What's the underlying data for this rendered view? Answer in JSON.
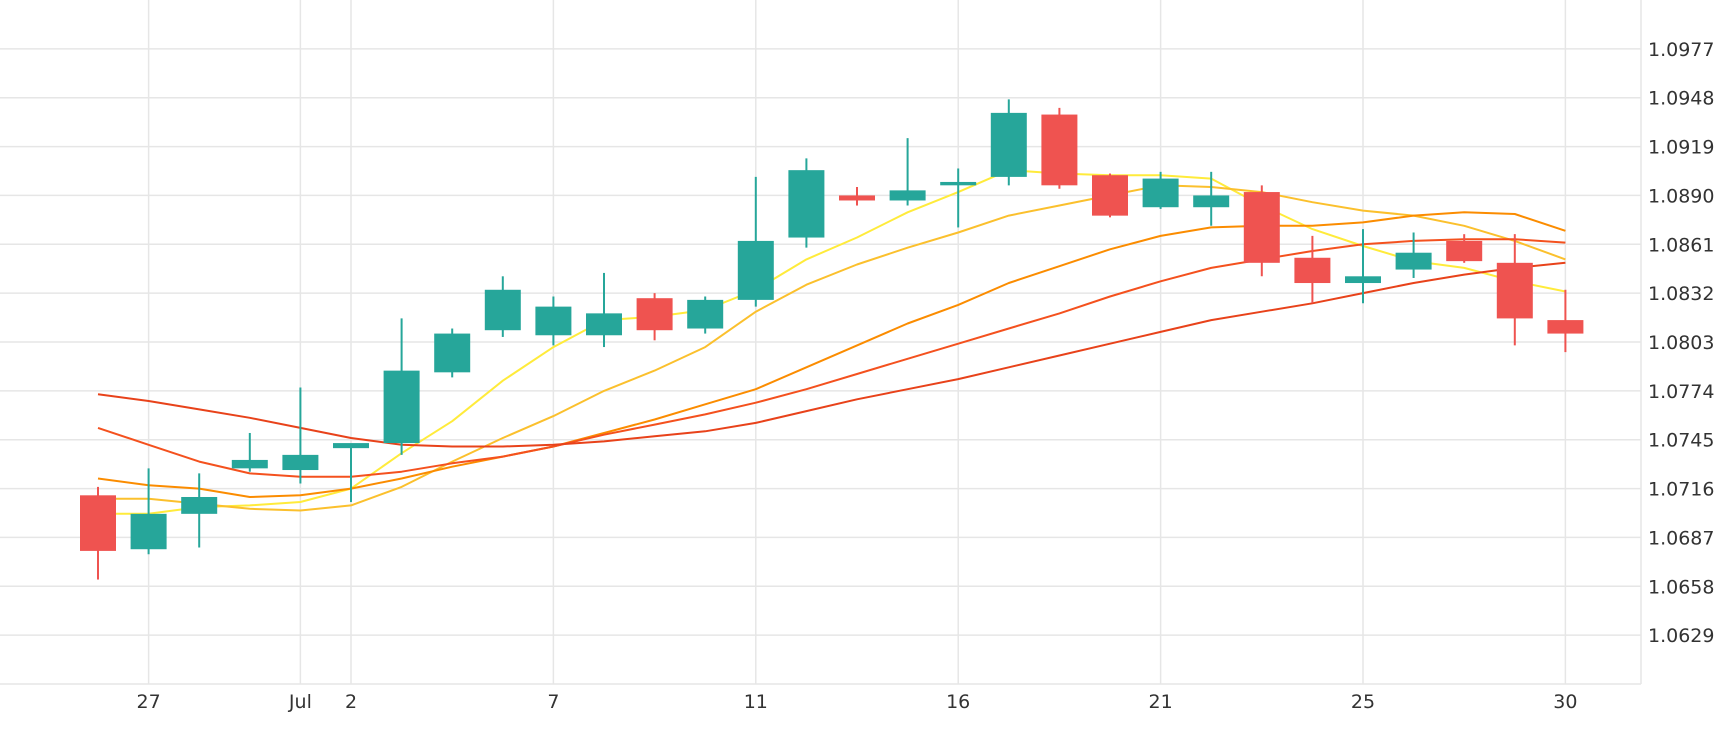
{
  "chart_data": {
    "type": "candlestick",
    "xlabel": "",
    "ylabel": "",
    "ylim": [
      1.06,
      1.1006
    ],
    "y_ticks": [
      "1.0977",
      "1.0948",
      "1.0919",
      "1.0890",
      "1.0861",
      "1.0832",
      "1.0803",
      "1.0774",
      "1.0745",
      "1.0716",
      "1.0687",
      "1.0658",
      "1.0629"
    ],
    "x_ticks": [
      {
        "label": "27",
        "index": 1
      },
      {
        "label": "Jul",
        "index": 4
      },
      {
        "label": "2",
        "index": 5
      },
      {
        "label": "7",
        "index": 9
      },
      {
        "label": "11",
        "index": 13
      },
      {
        "label": "16",
        "index": 17
      },
      {
        "label": "21",
        "index": 21
      },
      {
        "label": "25",
        "index": 25
      },
      {
        "label": "30",
        "index": 29
      }
    ],
    "grid": true,
    "colors": {
      "up": "#26a69a",
      "down": "#ef5350",
      "grid": "#e6e6e6",
      "axis_text": "#333333"
    },
    "candles": [
      {
        "o": 1.0712,
        "h": 1.0717,
        "l": 1.0662,
        "c": 1.0679
      },
      {
        "o": 1.068,
        "h": 1.0728,
        "l": 1.0677,
        "c": 1.0701
      },
      {
        "o": 1.0701,
        "h": 1.0725,
        "l": 1.0681,
        "c": 1.0711
      },
      {
        "o": 1.0728,
        "h": 1.0749,
        "l": 1.0726,
        "c": 1.0733
      },
      {
        "o": 1.0727,
        "h": 1.0776,
        "l": 1.0719,
        "c": 1.0736
      },
      {
        "o": 1.074,
        "h": 1.0741,
        "l": 1.0708,
        "c": 1.0743
      },
      {
        "o": 1.0743,
        "h": 1.0817,
        "l": 1.0736,
        "c": 1.0786
      },
      {
        "o": 1.0785,
        "h": 1.0811,
        "l": 1.0782,
        "c": 1.0808
      },
      {
        "o": 1.081,
        "h": 1.0842,
        "l": 1.0806,
        "c": 1.0834
      },
      {
        "o": 1.0807,
        "h": 1.083,
        "l": 1.0801,
        "c": 1.0824
      },
      {
        "o": 1.0807,
        "h": 1.0844,
        "l": 1.08,
        "c": 1.082
      },
      {
        "o": 1.0829,
        "h": 1.0832,
        "l": 1.0804,
        "c": 1.081
      },
      {
        "o": 1.0811,
        "h": 1.083,
        "l": 1.0808,
        "c": 1.0828
      },
      {
        "o": 1.0828,
        "h": 1.0901,
        "l": 1.0824,
        "c": 1.0863
      },
      {
        "o": 1.0865,
        "h": 1.0912,
        "l": 1.0859,
        "c": 1.0905
      },
      {
        "o": 1.089,
        "h": 1.0895,
        "l": 1.0884,
        "c": 1.0887
      },
      {
        "o": 1.0887,
        "h": 1.0924,
        "l": 1.0884,
        "c": 1.0893
      },
      {
        "o": 1.0896,
        "h": 1.0906,
        "l": 1.0871,
        "c": 1.0898
      },
      {
        "o": 1.0901,
        "h": 1.0947,
        "l": 1.0896,
        "c": 1.0939
      },
      {
        "o": 1.0938,
        "h": 1.0942,
        "l": 1.0894,
        "c": 1.0896
      },
      {
        "o": 1.0902,
        "h": 1.0903,
        "l": 1.0877,
        "c": 1.0878
      },
      {
        "o": 1.0883,
        "h": 1.0904,
        "l": 1.0882,
        "c": 1.09
      },
      {
        "o": 1.0883,
        "h": 1.0904,
        "l": 1.0872,
        "c": 1.089
      },
      {
        "o": 1.0892,
        "h": 1.0896,
        "l": 1.0842,
        "c": 1.085
      },
      {
        "o": 1.0853,
        "h": 1.0866,
        "l": 1.0826,
        "c": 1.0838
      },
      {
        "o": 1.0838,
        "h": 1.087,
        "l": 1.0826,
        "c": 1.0842
      },
      {
        "o": 1.0846,
        "h": 1.0868,
        "l": 1.0841,
        "c": 1.0856
      },
      {
        "o": 1.0863,
        "h": 1.0867,
        "l": 1.085,
        "c": 1.0851
      },
      {
        "o": 1.085,
        "h": 1.0867,
        "l": 1.0801,
        "c": 1.0817
      },
      {
        "o": 1.0816,
        "h": 1.0834,
        "l": 1.0797,
        "c": 1.0808
      }
    ],
    "series": [
      {
        "color": "#ffeb3b",
        "values": [
          1.0701,
          1.0701,
          1.0705,
          1.0706,
          1.0708,
          1.0716,
          1.0737,
          1.0756,
          1.078,
          1.08,
          1.0816,
          1.0818,
          1.0822,
          1.0834,
          1.0852,
          1.0865,
          1.088,
          1.0892,
          1.0905,
          1.0903,
          1.0902,
          1.0902,
          1.09,
          1.0884,
          1.087,
          1.086,
          1.0851,
          1.0847,
          1.0839,
          1.0833
        ]
      },
      {
        "color": "#fbc02d",
        "values": [
          1.071,
          1.071,
          1.0707,
          1.0704,
          1.0703,
          1.0706,
          1.0717,
          1.0732,
          1.0746,
          1.0759,
          1.0774,
          1.0786,
          1.08,
          1.0821,
          1.0837,
          1.0849,
          1.0859,
          1.0868,
          1.0878,
          1.0884,
          1.089,
          1.0896,
          1.0895,
          1.0892,
          1.0886,
          1.0881,
          1.0878,
          1.0872,
          1.0863,
          1.0852
        ]
      },
      {
        "color": "#fb8c00",
        "values": [
          1.0722,
          1.0718,
          1.0716,
          1.0711,
          1.0712,
          1.0716,
          1.0722,
          1.0729,
          1.0735,
          1.0741,
          1.0749,
          1.0757,
          1.0766,
          1.0775,
          1.0788,
          1.0801,
          1.0814,
          1.0825,
          1.0838,
          1.0848,
          1.0858,
          1.0866,
          1.0871,
          1.0872,
          1.0872,
          1.0874,
          1.0878,
          1.088,
          1.0879,
          1.0869
        ]
      },
      {
        "color": "#f4511e",
        "values": [
          1.0752,
          1.0742,
          1.0732,
          1.0725,
          1.0723,
          1.0723,
          1.0726,
          1.0731,
          1.0735,
          1.0741,
          1.0748,
          1.0754,
          1.076,
          1.0767,
          1.0775,
          1.0784,
          1.0793,
          1.0802,
          1.0811,
          1.082,
          1.083,
          1.0839,
          1.0847,
          1.0852,
          1.0857,
          1.0861,
          1.0863,
          1.0864,
          1.0864,
          1.0862
        ]
      },
      {
        "color": "#e8421a",
        "values": [
          1.0772,
          1.0768,
          1.0763,
          1.0758,
          1.0752,
          1.0746,
          1.0742,
          1.0741,
          1.0741,
          1.0742,
          1.0744,
          1.0747,
          1.075,
          1.0755,
          1.0762,
          1.0769,
          1.0775,
          1.0781,
          1.0788,
          1.0795,
          1.0802,
          1.0809,
          1.0816,
          1.0821,
          1.0826,
          1.0832,
          1.0838,
          1.0843,
          1.0847,
          1.085
        ]
      }
    ]
  }
}
